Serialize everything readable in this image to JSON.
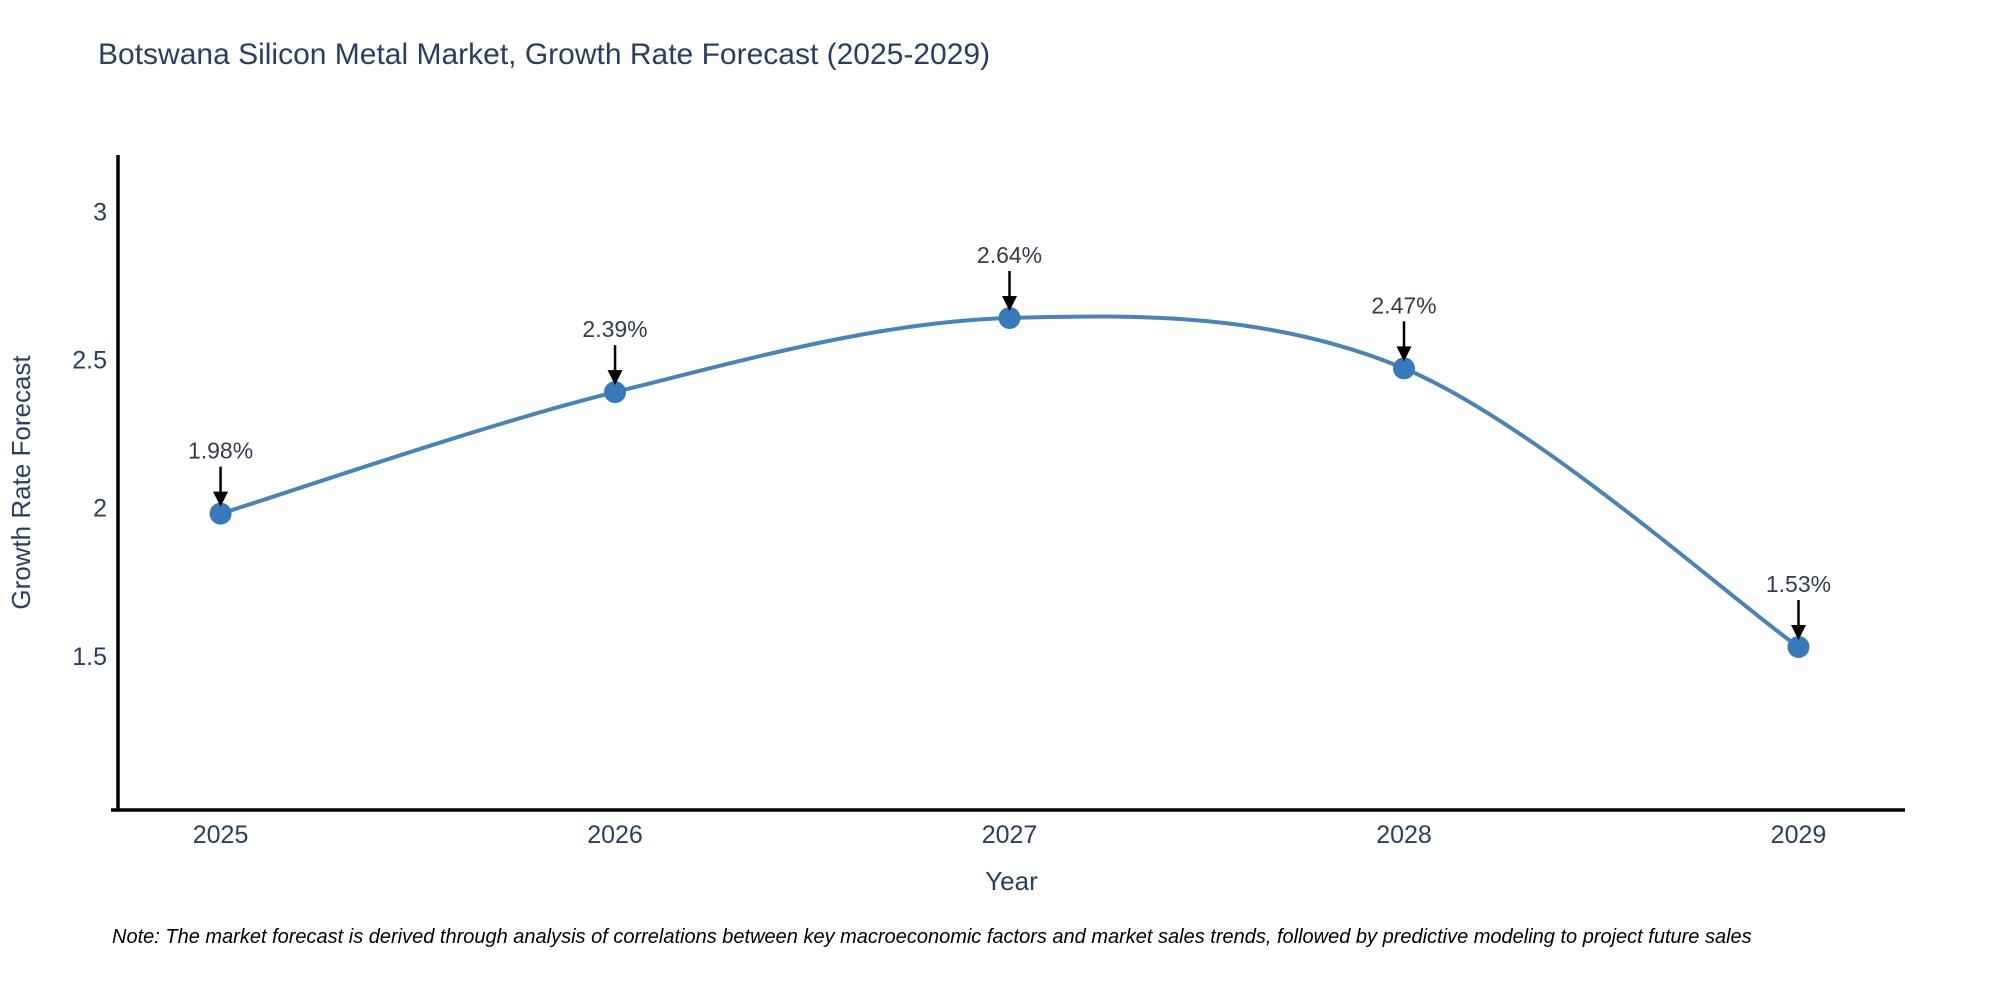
{
  "title": "Botswana Silicon Metal Market, Growth Rate Forecast (2025-2029)",
  "note": "Note: The market forecast is derived through analysis of correlations between key macroeconomic factors and market sales trends, followed by predictive modeling to project future sales",
  "chart_data": {
    "type": "line",
    "title": "Botswana Silicon Metal Market, Growth Rate Forecast (2025-2029)",
    "x": [
      2025,
      2026,
      2027,
      2028,
      2029
    ],
    "values": [
      1.98,
      2.39,
      2.64,
      2.47,
      1.53
    ],
    "point_labels": [
      "1.98%",
      "2.39%",
      "2.64%",
      "2.47%",
      "1.53%"
    ],
    "xlabel": "Year",
    "ylabel": "Growth Rate Forecast",
    "xticks": [
      2025,
      2026,
      2027,
      2028,
      2029
    ],
    "yticks": [
      1.5,
      2,
      2.5,
      3
    ],
    "xlim": [
      2024.74,
      2029.27
    ],
    "ylim": [
      0.98,
      3.19
    ],
    "line_shape": "spline",
    "grid": false,
    "legend": "none",
    "colors": {
      "line": "#4a84b6",
      "marker": "#3879b9",
      "axis": "#000000",
      "text": "#2a3f5f",
      "annotation_text": "#333d4d",
      "annotation_arrow": "#000000"
    }
  }
}
